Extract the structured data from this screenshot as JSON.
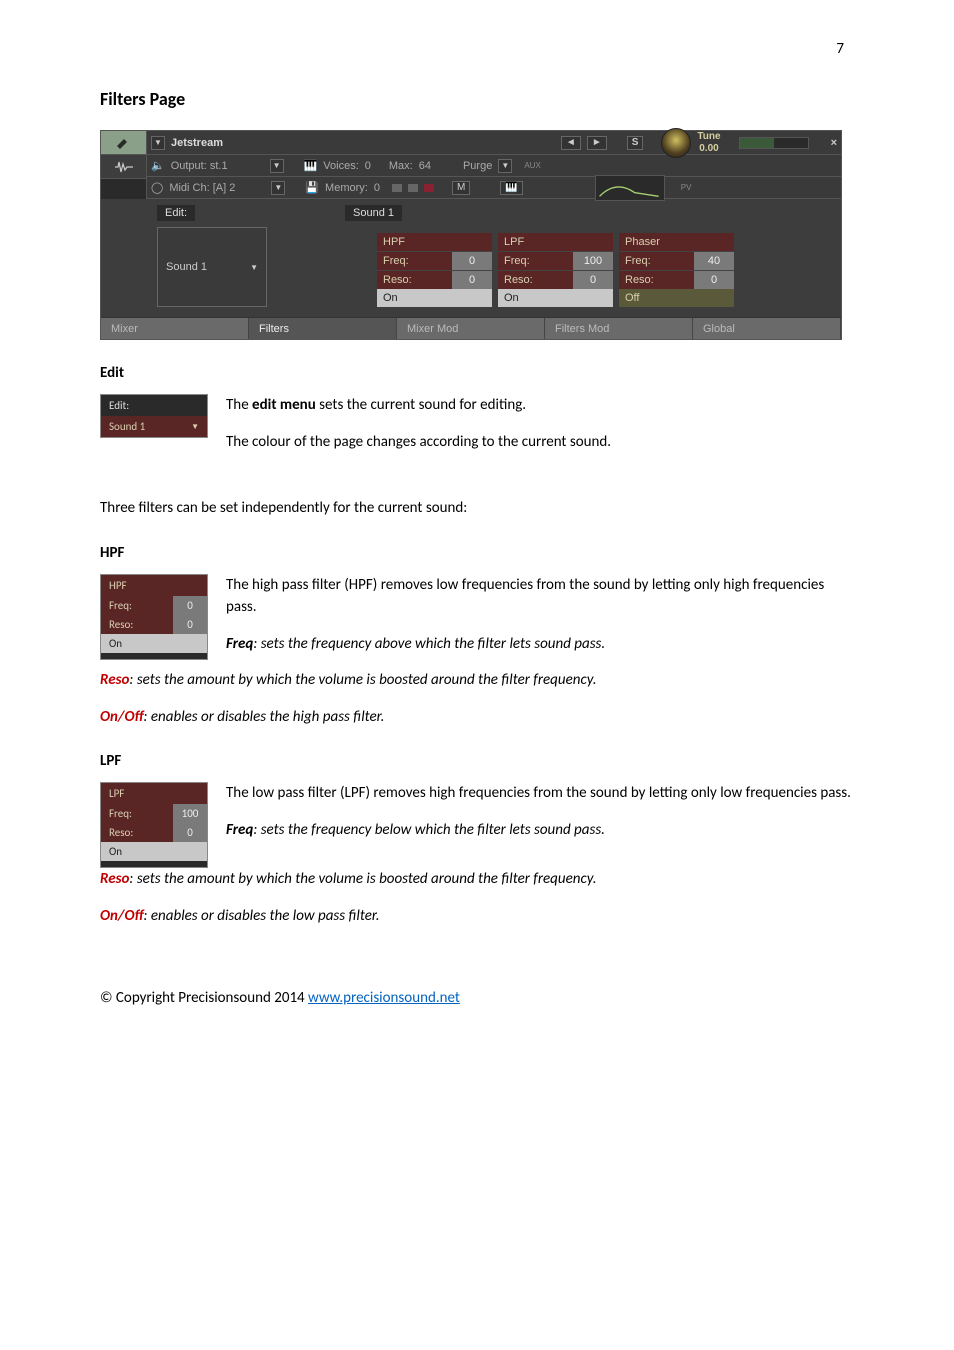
{
  "page_number": "7",
  "title": "Filters Page",
  "screenshot": {
    "title": "Jetstream",
    "output": "Output: st.1",
    "midi": "Midi Ch: [A] 2",
    "voices_label": "Voices:",
    "voices_val": "0",
    "max_label": "Max:",
    "max_val": "64",
    "memory_label": "Memory:",
    "memory_val": "0",
    "purge": "Purge",
    "s": "S",
    "m": "M",
    "tune_label": "Tune",
    "tune_val": "0.00",
    "aux": "AUX",
    "pv": "PV",
    "edit_label": "Edit:",
    "sound_label": "Sound 1",
    "sound_header": "Sound 1",
    "cols": [
      {
        "head": "HPF",
        "freq_l": "Freq:",
        "freq_v": "0",
        "reso_l": "Reso:",
        "reso_v": "0",
        "toggle": "On",
        "off": false
      },
      {
        "head": "LPF",
        "freq_l": "Freq:",
        "freq_v": "100",
        "reso_l": "Reso:",
        "reso_v": "0",
        "toggle": "On",
        "off": false
      },
      {
        "head": "Phaser",
        "freq_l": "Freq:",
        "freq_v": "40",
        "reso_l": "Reso:",
        "reso_v": "0",
        "toggle": "Off",
        "off": true
      }
    ],
    "tabs": [
      "Mixer",
      "Filters",
      "Mixer Mod",
      "Filters Mod",
      "Global"
    ],
    "active_tab": "Filters"
  },
  "sec_edit": {
    "heading": "Edit",
    "widget_top": "Edit:",
    "widget_sound": "Sound 1",
    "p1_a": "The ",
    "p1_b": "edit menu",
    "p1_c": " sets the current sound for editing.",
    "p2": "The colour of the page changes according to the current sound."
  },
  "p_three": "Three filters can be set independently for the current sound:",
  "sec_hpf": {
    "heading": "HPF",
    "w_head": "HPF",
    "freq_l": "Freq:",
    "freq_v": "0",
    "reso_l": "Reso:",
    "reso_v": "0",
    "toggle": "On",
    "p1": "The high pass filter (HPF) removes low frequencies from the sound by letting only high frequencies pass.",
    "freq_b": "Freq",
    "freq_desc": ": sets the frequency above which the filter lets sound pass.",
    "reso_b": "Reso",
    "reso_desc": ": sets the amount by which the volume is boosted around the filter frequency.",
    "onoff_b": "On/Off",
    "onoff_desc": ": enables or disables the high pass filter."
  },
  "sec_lpf": {
    "heading": "LPF",
    "w_head": "LPF",
    "freq_l": "Freq:",
    "freq_v": "100",
    "reso_l": "Reso:",
    "reso_v": "0",
    "toggle": "On",
    "p1": "The low pass filter (LPF) removes high frequencies from the sound by letting only low frequencies pass.",
    "freq_b": "Freq",
    "freq_desc": ": sets the frequency below which the filter lets sound pass.",
    "reso_b": "Reso",
    "reso_desc": ": sets the amount by which the volume is boosted around the filter frequency.",
    "onoff_b": "On/Off",
    "onoff_desc": ": enables or disables the low pass filter."
  },
  "copyright_prefix": "© Copyright Precisionsound 2014 ",
  "copyright_link": "www.precisionsound.net"
}
